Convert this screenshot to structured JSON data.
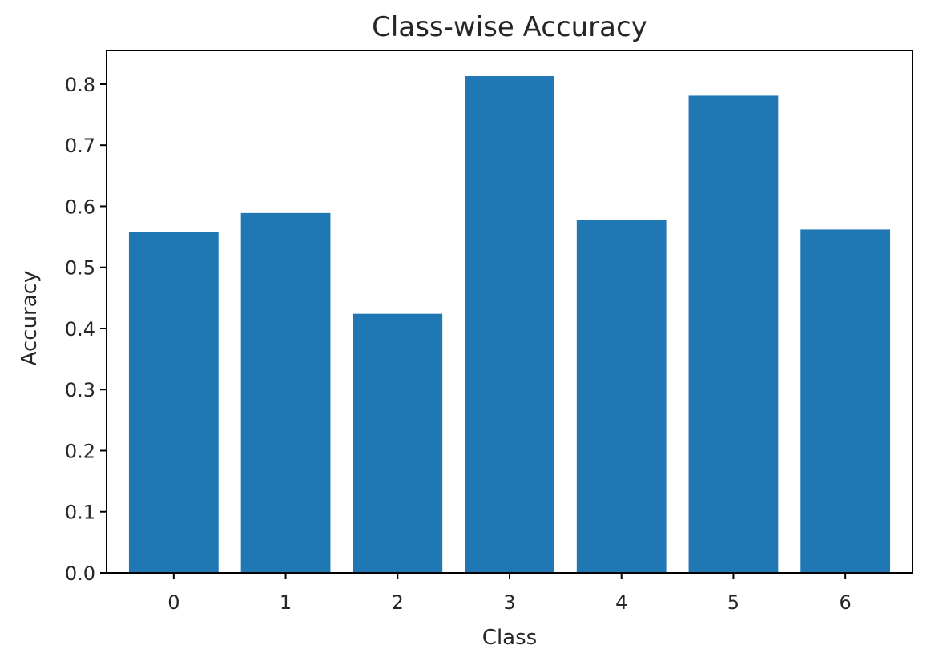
{
  "chart_data": {
    "type": "bar",
    "title": "Class-wise Accuracy",
    "xlabel": "Class",
    "ylabel": "Accuracy",
    "categories": [
      "0",
      "1",
      "2",
      "3",
      "4",
      "5",
      "6"
    ],
    "values": [
      0.558,
      0.589,
      0.424,
      0.813,
      0.578,
      0.781,
      0.562
    ],
    "ylim": [
      0,
      0.855
    ],
    "yticks": [
      "0.0",
      "0.1",
      "0.2",
      "0.3",
      "0.4",
      "0.5",
      "0.6",
      "0.7",
      "0.8"
    ],
    "color": "#1f77b4",
    "grid": false,
    "legend": "none"
  }
}
